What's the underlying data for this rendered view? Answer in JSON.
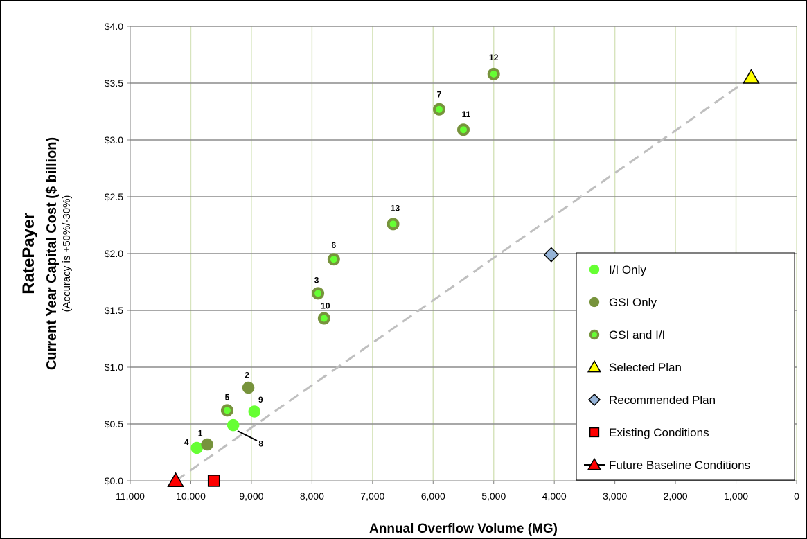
{
  "chart_data": {
    "type": "scatter",
    "ylabel_main": "RatePayer",
    "ylabel": "Current Year Capital Cost ($ billion)",
    "ylabel_note": "(Accuracy is +50%/-30%)",
    "xlabel": "Annual Overflow Volume (MG)",
    "xlim": [
      11000,
      0
    ],
    "ylim": [
      0,
      4.0
    ],
    "x_reversed": true,
    "grid": true,
    "legend_placement": "bottom-right",
    "x_ticks": [
      "11,000",
      "10,000",
      "9,000",
      "8,000",
      "7,000",
      "6,000",
      "5,000",
      "4,000",
      "3,000",
      "2,000",
      "1,000",
      "0"
    ],
    "x_tick_values": [
      11000,
      10000,
      9000,
      8000,
      7000,
      6000,
      5000,
      4000,
      3000,
      2000,
      1000,
      0
    ],
    "y_ticks": [
      "$0.0",
      "$0.5",
      "$1.0",
      "$1.5",
      "$2.0",
      "$2.5",
      "$3.0",
      "$3.5",
      "$4.0"
    ],
    "y_tick_values": [
      0,
      0.5,
      1.0,
      1.5,
      2.0,
      2.5,
      3.0,
      3.5,
      4.0
    ],
    "trendline": {
      "from": [
        10250,
        0.0
      ],
      "to": [
        750,
        3.55
      ],
      "color": "#bfbfbf"
    },
    "series": [
      {
        "name": "I/I Only",
        "marker": "circle",
        "fill": "#66ff33",
        "stroke": "#66ff33",
        "points": [
          {
            "label": "4",
            "x": 9900,
            "y": 0.29
          },
          {
            "label": "8",
            "x": 9300,
            "y": 0.49
          },
          {
            "label": "9",
            "x": 8950,
            "y": 0.61
          }
        ]
      },
      {
        "name": "GSI Only",
        "marker": "circle",
        "fill": "#77933c",
        "stroke": "#77933c",
        "points": [
          {
            "label": "1",
            "x": 9730,
            "y": 0.32
          },
          {
            "label": "2",
            "x": 9050,
            "y": 0.82
          }
        ]
      },
      {
        "name": "GSI and I/I",
        "marker": "circle-ring",
        "fill": "#66ff33",
        "stroke": "#77933c",
        "points": [
          {
            "label": "5",
            "x": 9400,
            "y": 0.62
          },
          {
            "label": "3",
            "x": 7900,
            "y": 1.65
          },
          {
            "label": "10",
            "x": 7800,
            "y": 1.43
          },
          {
            "label": "6",
            "x": 7640,
            "y": 1.95
          },
          {
            "label": "13",
            "x": 6660,
            "y": 2.26
          },
          {
            "label": "7",
            "x": 5900,
            "y": 3.27
          },
          {
            "label": "11",
            "x": 5500,
            "y": 3.09
          },
          {
            "label": "12",
            "x": 5000,
            "y": 3.58
          }
        ]
      },
      {
        "name": "Selected Plan",
        "marker": "triangle",
        "fill": "#ffff00",
        "stroke": "#000000",
        "points": [
          {
            "x": 750,
            "y": 3.55
          }
        ]
      },
      {
        "name": "Recommended Plan",
        "marker": "diamond",
        "fill": "#95b3d7",
        "stroke": "#000000",
        "points": [
          {
            "x": 4050,
            "y": 1.99
          }
        ]
      },
      {
        "name": "Existing Conditions",
        "marker": "square",
        "fill": "#ff0000",
        "stroke": "#000000",
        "points": [
          {
            "x": 9620,
            "y": 0.0
          }
        ]
      },
      {
        "name": "Future Baseline Conditions",
        "marker": "triangle-line",
        "fill": "#ff0000",
        "stroke": "#000000",
        "points": [
          {
            "x": 10250,
            "y": 0.0
          }
        ]
      }
    ]
  }
}
